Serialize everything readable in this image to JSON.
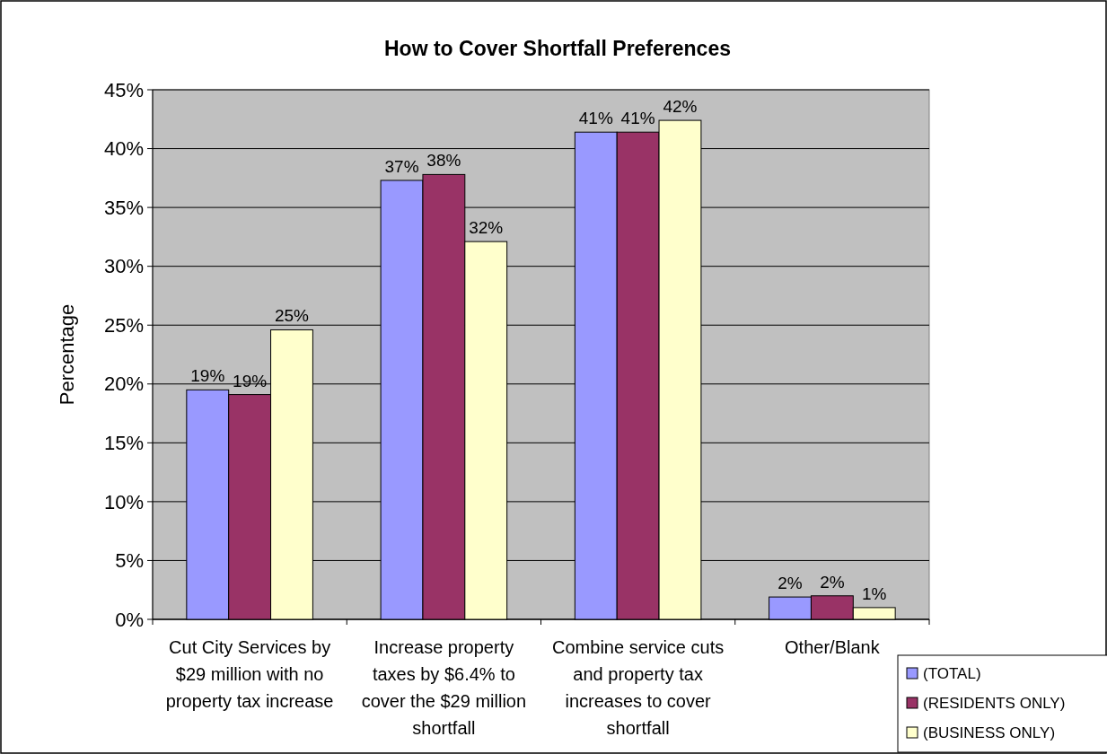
{
  "chart_data": {
    "type": "bar",
    "title": "How to Cover Shortfall Preferences",
    "ylabel": "Percentage",
    "categories": [
      "Cut City Services by $29 million with no property tax increase",
      "Increase property taxes by $6.4% to cover the $29 million shortfall",
      "Combine service cuts and property tax increases to cover shortfall",
      "Other/Blank"
    ],
    "series": [
      {
        "name": "(TOTAL)",
        "color": "#9999ff",
        "values": [
          19.5,
          37.3,
          41.4,
          1.9
        ],
        "value_labels": [
          "19%",
          "37%",
          "41%",
          "2%"
        ]
      },
      {
        "name": "(RESIDENTS ONLY)",
        "color": "#993366",
        "values": [
          19.1,
          37.8,
          41.4,
          2.0
        ],
        "value_labels": [
          "19%",
          "38%",
          "41%",
          "2%"
        ]
      },
      {
        "name": "(BUSINESS ONLY)",
        "color": "#ffffcc",
        "values": [
          24.6,
          32.1,
          42.4,
          1.0
        ],
        "value_labels": [
          "25%",
          "32%",
          "42%",
          "1%"
        ]
      }
    ],
    "ylim": [
      0,
      45
    ],
    "yticks": [
      {
        "value": 0,
        "label": "0%"
      },
      {
        "value": 5,
        "label": "5%"
      },
      {
        "value": 10,
        "label": "10%"
      },
      {
        "value": 15,
        "label": "15%"
      },
      {
        "value": 20,
        "label": "20%"
      },
      {
        "value": 25,
        "label": "25%"
      },
      {
        "value": 30,
        "label": "30%"
      },
      {
        "value": 35,
        "label": "35%"
      },
      {
        "value": 40,
        "label": "40%"
      },
      {
        "value": 45,
        "label": "45%"
      }
    ],
    "grid": "y",
    "legend": "bottom right"
  }
}
